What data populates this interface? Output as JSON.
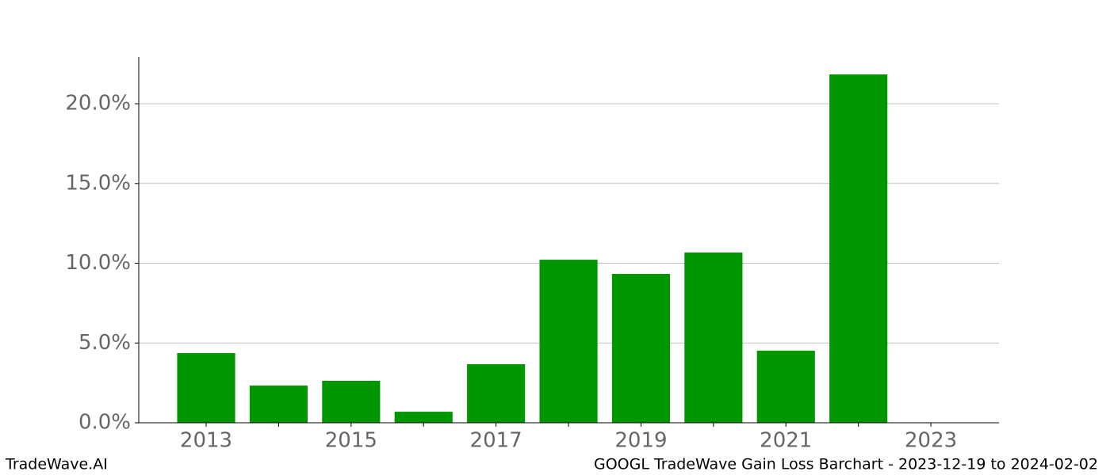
{
  "chart_data": {
    "type": "bar",
    "x": [
      2013,
      2014,
      2015,
      2016,
      2017,
      2018,
      2019,
      2020,
      2021,
      2022,
      2023
    ],
    "values": [
      4.37,
      2.33,
      2.63,
      0.69,
      3.67,
      10.22,
      9.33,
      10.67,
      4.52,
      21.84,
      null
    ],
    "color": "#009600",
    "xlim": [
      2012.07,
      2023.94
    ],
    "xticks": [
      2013,
      2015,
      2017,
      2019,
      2021,
      2023
    ],
    "ylim": [
      0,
      22.93
    ],
    "yticks": [
      {
        "value": 0,
        "label": "0.0%"
      },
      {
        "value": 5,
        "label": "5.0%"
      },
      {
        "value": 10,
        "label": "10.0%"
      },
      {
        "value": 15,
        "label": "15.0%"
      },
      {
        "value": 20,
        "label": "20.0%"
      }
    ],
    "grid": true
  },
  "footer": {
    "left": "TradeWave.AI",
    "right": "GOOGL TradeWave Gain Loss Barchart - 2023-12-19 to 2024-02-02"
  }
}
